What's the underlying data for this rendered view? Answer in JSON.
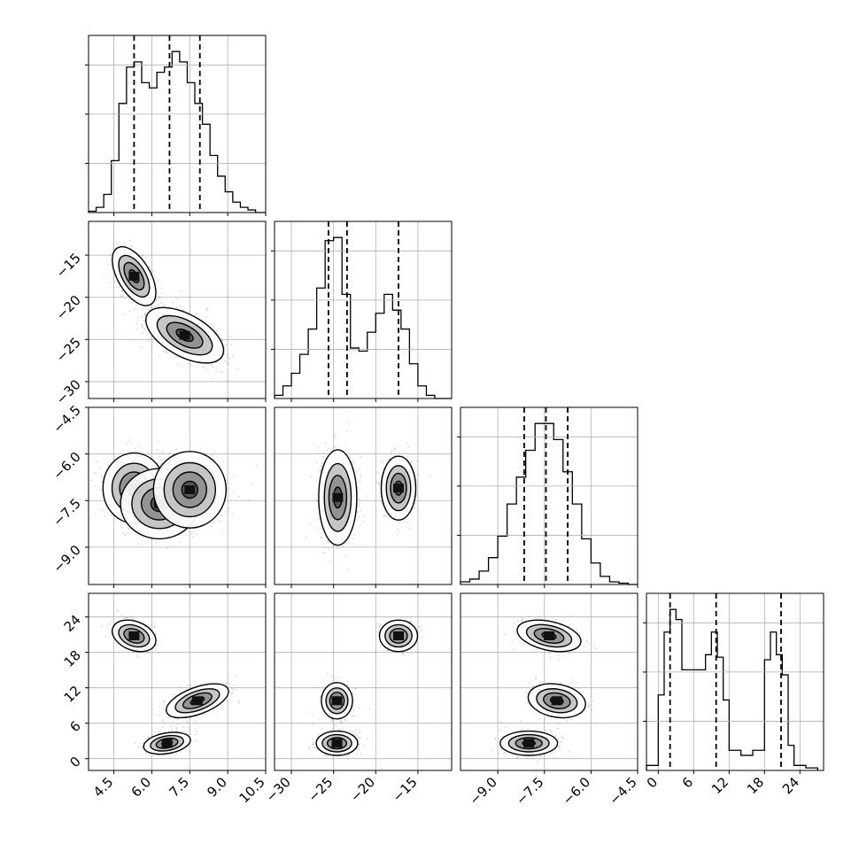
{
  "chart_data": {
    "type": "corner",
    "parameters": [
      {
        "range": [
          3.5,
          10.5
        ],
        "tick_values": [
          4.5,
          6.0,
          7.5,
          9.0,
          10.5
        ],
        "tick_labels": [
          "4.5",
          "6.0",
          "7.5",
          "9.0",
          "10.5"
        ],
        "quantiles": [
          5.3,
          6.7,
          7.9
        ],
        "hist": {
          "edges": [
            3.5,
            3.8,
            4.1,
            4.4,
            4.7,
            5.0,
            5.3,
            5.6,
            5.9,
            6.2,
            6.5,
            6.8,
            7.1,
            7.4,
            7.7,
            8.0,
            8.3,
            8.6,
            8.9,
            9.2,
            9.5,
            9.8,
            10.1,
            10.5
          ],
          "counts": [
            0.5,
            2,
            7,
            20,
            42,
            56,
            58,
            50,
            48,
            54,
            56,
            62,
            58,
            50,
            42,
            34,
            22,
            14,
            8,
            4,
            2,
            1,
            0
          ]
        }
      },
      {
        "range": [
          -32,
          -11
        ],
        "tick_values": [
          -30,
          -25,
          -20,
          -15
        ],
        "tick_labels": [
          "−30",
          "−25",
          "−20",
          "−15"
        ],
        "quantiles": [
          -25.6,
          -23.4,
          -17.3
        ],
        "hist": {
          "edges": [
            -32,
            -31,
            -30,
            -29,
            -28,
            -27,
            -26,
            -25,
            -24,
            -23,
            -22,
            -21,
            -20,
            -19,
            -18,
            -17,
            -16,
            -15,
            -14,
            -13,
            -12,
            -11
          ],
          "counts": [
            1,
            4,
            8,
            14,
            22,
            35,
            50,
            51,
            33,
            16,
            15,
            21,
            27,
            33,
            28,
            22,
            11,
            4,
            1,
            0,
            0
          ]
        }
      },
      {
        "range": [
          -10.2,
          -4.5
        ],
        "tick_values": [
          -9.0,
          -7.5,
          -6.0,
          -4.5
        ],
        "tick_labels": [
          "−9.0",
          "−7.5",
          "−6.0",
          "−4.5"
        ],
        "quantiles": [
          -8.15,
          -7.45,
          -6.75
        ],
        "hist": {
          "edges": [
            -10.2,
            -9.9,
            -9.6,
            -9.3,
            -9.0,
            -8.7,
            -8.4,
            -8.1,
            -7.8,
            -7.5,
            -7.2,
            -6.9,
            -6.6,
            -6.3,
            -6.0,
            -5.7,
            -5.4,
            -5.1,
            -4.8,
            -4.5
          ],
          "counts": [
            1,
            2,
            5,
            10,
            18,
            30,
            40,
            50,
            60,
            60,
            54,
            42,
            30,
            17,
            8,
            3,
            1,
            0.5,
            0
          ]
        }
      },
      {
        "range": [
          -2,
          28
        ],
        "tick_values": [
          0,
          6,
          12,
          18,
          24
        ],
        "tick_labels": [
          "0",
          "6",
          "12",
          "18",
          "24"
        ],
        "quantiles": [
          2.0,
          9.8,
          20.8
        ],
        "hist": {
          "edges": [
            -2,
            0,
            1,
            2,
            3,
            4,
            6,
            8,
            9,
            10,
            11,
            12,
            14,
            16,
            18,
            19,
            20,
            21,
            22,
            23,
            25,
            27
          ],
          "counts": [
            2,
            30,
            55,
            64,
            60,
            40,
            40,
            46,
            55,
            45,
            28,
            8,
            6,
            8,
            44,
            55,
            46,
            38,
            10,
            2,
            1
          ]
        }
      }
    ],
    "pair_densities": [
      {
        "x": 0,
        "y": 1,
        "components": [
          {
            "mx": 5.3,
            "my": -17.5,
            "sx": 0.42,
            "sy": 1.7,
            "rho": -0.55,
            "w": 0.32
          },
          {
            "mx": 7.3,
            "my": -24.5,
            "sx": 0.75,
            "sy": 1.6,
            "rho": -0.55,
            "w": 0.68
          }
        ]
      },
      {
        "x": 0,
        "y": 2,
        "components": [
          {
            "mx": 5.3,
            "my": -7.1,
            "sx": 0.6,
            "sy": 0.55,
            "rho": 0.0,
            "w": 0.32
          },
          {
            "mx": 6.3,
            "my": -7.6,
            "sx": 0.75,
            "sy": 0.55,
            "rho": 0.0,
            "w": 0.25
          },
          {
            "mx": 7.5,
            "my": -7.15,
            "sx": 0.7,
            "sy": 0.6,
            "rho": 0.0,
            "w": 0.43
          }
        ]
      },
      {
        "x": 0,
        "y": 3,
        "components": [
          {
            "mx": 5.3,
            "my": 20.8,
            "sx": 0.42,
            "sy": 1.3,
            "rho": -0.3,
            "w": 0.32
          },
          {
            "mx": 6.6,
            "my": 2.6,
            "sx": 0.45,
            "sy": 0.9,
            "rho": 0.3,
            "w": 0.34
          },
          {
            "mx": 7.8,
            "my": 9.8,
            "sx": 0.6,
            "sy": 1.4,
            "rho": 0.55,
            "w": 0.34
          }
        ]
      },
      {
        "x": 1,
        "y": 2,
        "components": [
          {
            "mx": -24.5,
            "my": -7.4,
            "sx": 1.1,
            "sy": 0.75,
            "rho": 0.0,
            "w": 0.66
          },
          {
            "mx": -17.3,
            "my": -7.1,
            "sx": 1.0,
            "sy": 0.5,
            "rho": 0.0,
            "w": 0.34
          }
        ]
      },
      {
        "x": 1,
        "y": 3,
        "components": [
          {
            "mx": -17.3,
            "my": 20.8,
            "sx": 1.1,
            "sy": 1.3,
            "rho": 0.0,
            "w": 0.32
          },
          {
            "mx": -24.6,
            "my": 2.6,
            "sx": 1.2,
            "sy": 1.0,
            "rho": 0.0,
            "w": 0.34
          },
          {
            "mx": -24.6,
            "my": 9.8,
            "sx": 0.9,
            "sy": 1.5,
            "rho": 0.0,
            "w": 0.34
          }
        ]
      },
      {
        "x": 2,
        "y": 3,
        "components": [
          {
            "mx": -7.35,
            "my": 20.8,
            "sx": 0.5,
            "sy": 1.3,
            "rho": -0.35,
            "w": 0.32
          },
          {
            "mx": -8.0,
            "my": 2.6,
            "sx": 0.45,
            "sy": 1.0,
            "rho": 0.0,
            "w": 0.34
          },
          {
            "mx": -7.1,
            "my": 9.8,
            "sx": 0.45,
            "sy": 1.4,
            "rho": -0.2,
            "w": 0.34
          }
        ]
      }
    ],
    "contour_levels": [
      0.118,
      0.393,
      0.675,
      0.864
    ],
    "colors": {
      "line": "#000000",
      "grid": "#b0b0b0",
      "points": "#777777",
      "background": "#ffffff"
    }
  }
}
